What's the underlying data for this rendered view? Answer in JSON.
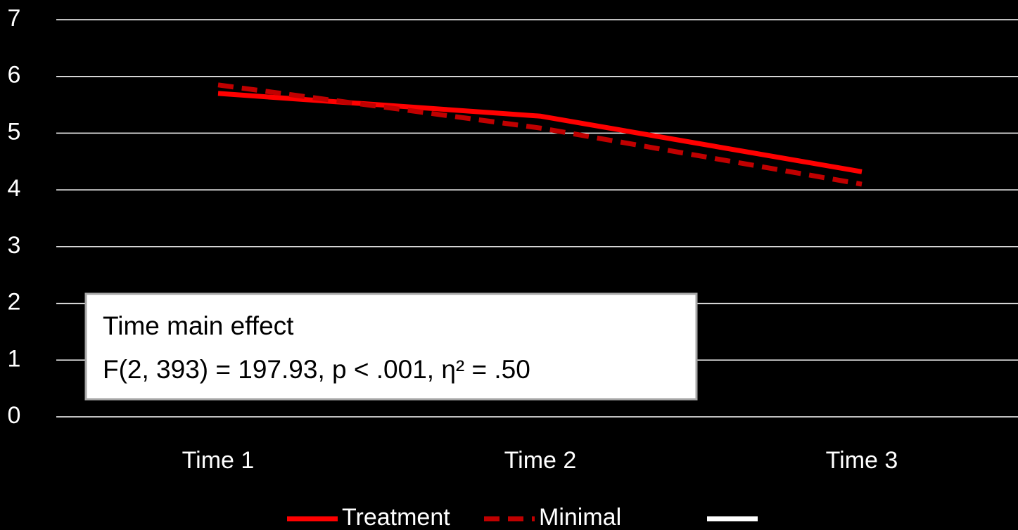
{
  "chart_data": {
    "type": "line",
    "categories": [
      "Time 1",
      "Time 2",
      "Time 3"
    ],
    "series": [
      {
        "name": "Treatment",
        "color": "#ff0000",
        "dash": false,
        "values": [
          5.7,
          5.3,
          4.32
        ]
      },
      {
        "name": "Minimal",
        "color": "#c00000",
        "dash": true,
        "values": [
          5.85,
          5.09,
          4.1
        ]
      },
      {
        "color": "#ffffff",
        "dash": false,
        "values": [
          null,
          null,
          null
        ]
      }
    ],
    "ylim": [
      0,
      7
    ],
    "yticks": [
      0,
      1,
      2,
      3,
      4,
      5,
      6,
      7
    ],
    "grid": true,
    "legend": "bottom",
    "annotation": [
      "Time main effect",
      "F(2, 393) = 197.93, p < .001, η² = .50"
    ]
  }
}
